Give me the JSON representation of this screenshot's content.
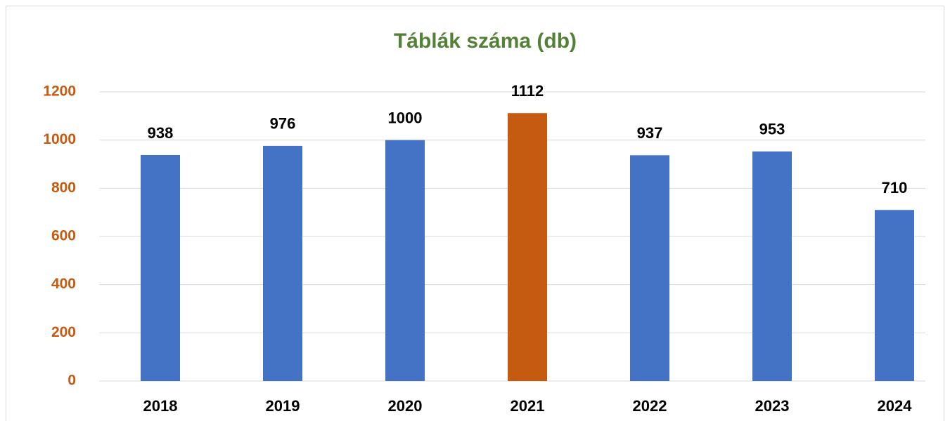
{
  "chart_data": {
    "type": "bar",
    "title": "Táblák száma (db)",
    "categories": [
      "2018",
      "2019",
      "2020",
      "2021",
      "2022",
      "2023",
      "2024"
    ],
    "values": [
      938,
      976,
      1000,
      1112,
      937,
      953,
      710
    ],
    "colors": [
      "#4472c4",
      "#4472c4",
      "#4472c4",
      "#c55a11",
      "#4472c4",
      "#4472c4",
      "#4472c4"
    ],
    "ylim": [
      0,
      1200
    ],
    "yticks": [
      0,
      200,
      400,
      600,
      800,
      1000,
      1200
    ],
    "grid": true
  }
}
